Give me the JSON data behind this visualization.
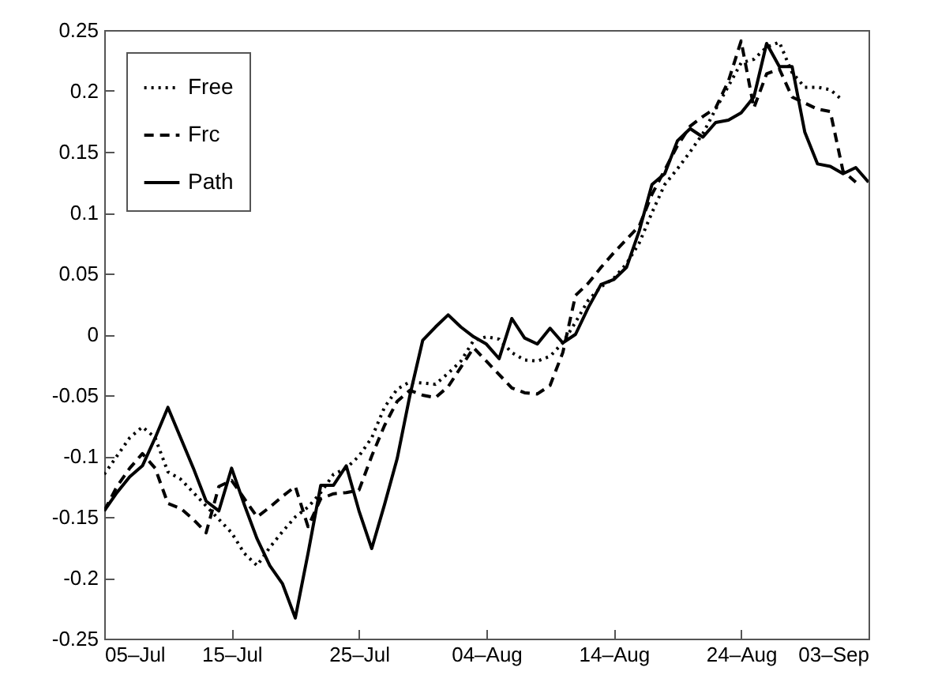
{
  "chart_data": {
    "type": "line",
    "x": [
      "--07-05",
      "--07-06",
      "--07-07",
      "--07-08",
      "--07-09",
      "--07-10",
      "--07-11",
      "--07-12",
      "--07-13",
      "--07-14",
      "--07-15",
      "--07-16",
      "--07-17",
      "--07-18",
      "--07-19",
      "--07-20",
      "--07-21",
      "--07-22",
      "--07-23",
      "--07-24",
      "--07-25",
      "--07-26",
      "--07-27",
      "--07-28",
      "--07-29",
      "--07-30",
      "--07-31",
      "--08-01",
      "--08-02",
      "--08-03",
      "--08-04",
      "--08-05",
      "--08-06",
      "--08-07",
      "--08-08",
      "--08-09",
      "--08-10",
      "--08-11",
      "--08-12",
      "--08-13",
      "--08-14",
      "--08-15",
      "--08-16",
      "--08-17",
      "--08-18",
      "--08-19",
      "--08-20",
      "--08-21",
      "--08-22",
      "--08-23",
      "--08-24",
      "--08-25",
      "--08-26",
      "--08-27",
      "--08-28",
      "--08-29",
      "--08-30",
      "--08-31",
      "--09-01",
      "--09-02",
      "--09-03"
    ],
    "series": [
      {
        "name": "Free",
        "color": "#000000",
        "line_style": "dotted",
        "values": [
          -0.115,
          -0.1,
          -0.085,
          -0.076,
          -0.085,
          -0.113,
          -0.119,
          -0.13,
          -0.141,
          -0.152,
          -0.163,
          -0.18,
          -0.19,
          -0.175,
          -0.162,
          -0.15,
          -0.142,
          -0.13,
          -0.115,
          -0.11,
          -0.1,
          -0.085,
          -0.06,
          -0.045,
          -0.039,
          -0.04,
          -0.041,
          -0.032,
          -0.022,
          -0.005,
          -0.002,
          -0.004,
          -0.015,
          -0.021,
          -0.022,
          -0.018,
          -0.007,
          0.01,
          0.028,
          0.039,
          0.046,
          0.058,
          0.075,
          0.1,
          0.123,
          0.136,
          0.15,
          0.165,
          0.185,
          0.204,
          0.223,
          0.226,
          0.236,
          0.24,
          0.215,
          0.203,
          0.203,
          0.201,
          0.192,
          null,
          null
        ]
      },
      {
        "name": "Frc",
        "color": "#000000",
        "line_style": "dashed",
        "values": [
          -0.145,
          -0.125,
          -0.11,
          -0.098,
          -0.11,
          -0.139,
          -0.143,
          -0.152,
          -0.163,
          -0.125,
          -0.12,
          -0.135,
          -0.15,
          -0.142,
          -0.133,
          -0.125,
          -0.158,
          -0.135,
          -0.131,
          -0.13,
          -0.128,
          -0.1,
          -0.075,
          -0.055,
          -0.046,
          -0.05,
          -0.052,
          -0.043,
          -0.027,
          -0.011,
          -0.022,
          -0.033,
          -0.044,
          -0.048,
          -0.049,
          -0.042,
          -0.015,
          0.032,
          0.042,
          0.055,
          0.067,
          0.078,
          0.089,
          0.115,
          0.135,
          0.155,
          0.171,
          0.179,
          0.186,
          0.208,
          0.241,
          0.186,
          0.214,
          0.218,
          0.195,
          0.19,
          0.185,
          0.183,
          0.134,
          0.125,
          null
        ]
      },
      {
        "name": "Path",
        "color": "#000000",
        "line_style": "solid",
        "values": [
          -0.145,
          -0.13,
          -0.117,
          -0.108,
          -0.085,
          -0.06,
          -0.085,
          -0.11,
          -0.137,
          -0.145,
          -0.11,
          -0.14,
          -0.168,
          -0.19,
          -0.205,
          -0.233,
          -0.18,
          -0.124,
          -0.124,
          -0.108,
          -0.145,
          -0.176,
          -0.14,
          -0.102,
          -0.05,
          -0.005,
          0.006,
          0.016,
          0.006,
          -0.002,
          -0.008,
          -0.02,
          0.013,
          -0.003,
          -0.008,
          0.005,
          -0.007,
          0.0,
          0.022,
          0.041,
          0.045,
          0.055,
          0.085,
          0.123,
          0.132,
          0.159,
          0.169,
          0.162,
          0.174,
          0.176,
          0.182,
          0.195,
          0.239,
          0.22,
          0.22,
          0.166,
          0.14,
          0.138,
          0.132,
          0.137,
          0.125
        ]
      }
    ],
    "xlim": [
      "--07-05",
      "--09-03"
    ],
    "xticks": [
      {
        "value": "--07-05",
        "label": "05–Jul"
      },
      {
        "value": "--07-15",
        "label": "15–Jul"
      },
      {
        "value": "--07-25",
        "label": "25–Jul"
      },
      {
        "value": "--08-04",
        "label": "04–Aug"
      },
      {
        "value": "--08-14",
        "label": "14–Aug"
      },
      {
        "value": "--08-24",
        "label": "24–Aug"
      },
      {
        "value": "--09-03",
        "label": "03–Sep"
      }
    ],
    "ylim": [
      -0.25,
      0.25
    ],
    "yticks": [
      -0.25,
      -0.2,
      -0.15,
      -0.1,
      -0.05,
      0,
      0.05,
      0.1,
      0.15,
      0.2,
      0.25
    ],
    "legend": "top left"
  }
}
